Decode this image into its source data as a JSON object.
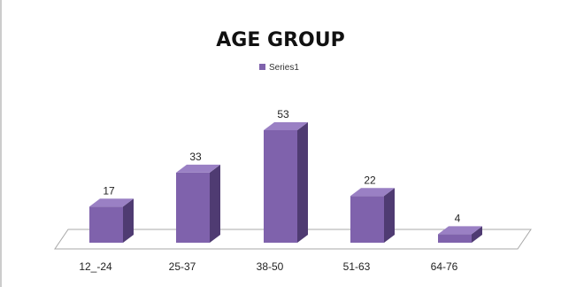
{
  "chart_data": {
    "type": "bar",
    "title": "AGE GROUP",
    "categories": [
      "12_-24",
      "25-37",
      "38-50",
      "51-63",
      "64-76"
    ],
    "series": [
      {
        "name": "Series1",
        "values": [
          17,
          33,
          53,
          22,
          4
        ]
      }
    ],
    "data_labels": [
      "17",
      "33",
      "53",
      "22",
      "4"
    ],
    "xlabel": "",
    "ylabel": "",
    "ylim": [
      0,
      60
    ],
    "grid": false,
    "legend": "top-center",
    "colors": {
      "front": "#7f62ac",
      "side": "#4f3b72",
      "top": "#9a80c4",
      "floor_stroke": "#a8a8a8"
    }
  }
}
